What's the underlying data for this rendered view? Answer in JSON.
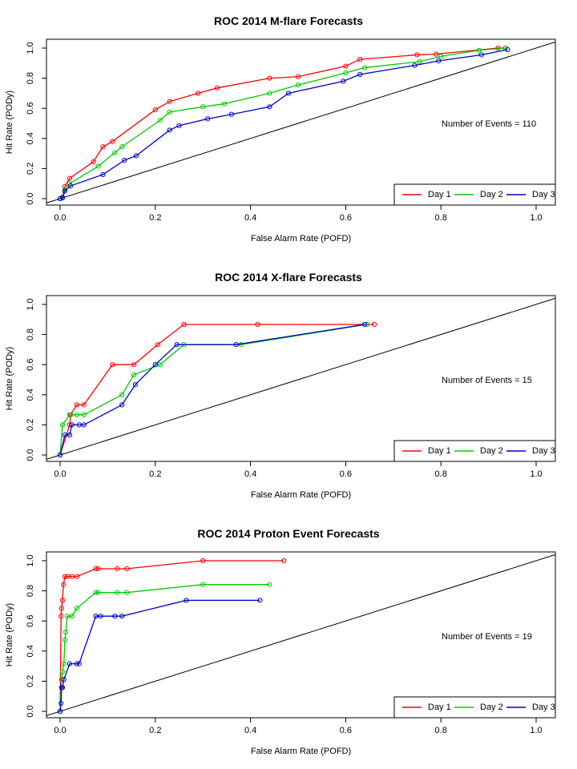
{
  "chart_data": [
    {
      "type": "line",
      "title": "ROC  2014 M-flare Forecasts",
      "xlabel": "False Alarm Rate (POFD)",
      "ylabel": "Hit Rate (PODy)",
      "xlim": [
        0,
        1.0
      ],
      "ylim": [
        0,
        1.0
      ],
      "xticks": [
        "0.0",
        "0.2",
        "0.4",
        "0.6",
        "0.8",
        "1.0"
      ],
      "yticks": [
        "0.0",
        "0.2",
        "0.4",
        "0.6",
        "0.8",
        "1.0"
      ],
      "grid": false,
      "legend": "bottom-right",
      "annotation": "Number of Events =  110",
      "diagonal": true,
      "series": [
        {
          "name": "Day 1",
          "color": "#ff0000",
          "x": [
            0.0,
            0.005,
            0.01,
            0.02,
            0.07,
            0.09,
            0.11,
            0.2,
            0.23,
            0.29,
            0.33,
            0.44,
            0.5,
            0.6,
            0.63,
            0.75,
            0.79,
            0.92,
            0.935
          ],
          "y": [
            0.0,
            0.01,
            0.08,
            0.135,
            0.245,
            0.345,
            0.38,
            0.59,
            0.645,
            0.7,
            0.735,
            0.8,
            0.81,
            0.88,
            0.925,
            0.955,
            0.96,
            1.0,
            1.0
          ]
        },
        {
          "name": "Day 2",
          "color": "#00cc00",
          "x": [
            0.0,
            0.005,
            0.01,
            0.02,
            0.08,
            0.115,
            0.13,
            0.21,
            0.23,
            0.3,
            0.345,
            0.44,
            0.5,
            0.6,
            0.64,
            0.755,
            0.8,
            0.88,
            0.935
          ],
          "y": [
            0.0,
            0.01,
            0.06,
            0.1,
            0.215,
            0.305,
            0.345,
            0.52,
            0.575,
            0.61,
            0.63,
            0.7,
            0.755,
            0.835,
            0.87,
            0.91,
            0.945,
            0.985,
            1.0
          ]
        },
        {
          "name": "Day 3",
          "color": "#0000cc",
          "x": [
            0.0,
            0.005,
            0.01,
            0.022,
            0.09,
            0.135,
            0.16,
            0.23,
            0.25,
            0.31,
            0.36,
            0.44,
            0.48,
            0.595,
            0.63,
            0.745,
            0.795,
            0.885,
            0.94
          ],
          "y": [
            0.0,
            0.005,
            0.05,
            0.085,
            0.16,
            0.255,
            0.285,
            0.455,
            0.485,
            0.53,
            0.56,
            0.61,
            0.7,
            0.78,
            0.825,
            0.885,
            0.915,
            0.955,
            0.99
          ]
        }
      ]
    },
    {
      "type": "line",
      "title": "ROC  2014 X-flare Forecasts",
      "xlabel": "False Alarm Rate (POFD)",
      "ylabel": "Hit Rate (PODy)",
      "xlim": [
        0,
        1.0
      ],
      "ylim": [
        0,
        1.0
      ],
      "xticks": [
        "0.0",
        "0.2",
        "0.4",
        "0.6",
        "0.8",
        "1.0"
      ],
      "yticks": [
        "0.0",
        "0.2",
        "0.4",
        "0.6",
        "0.8",
        "1.0"
      ],
      "grid": false,
      "legend": "bottom-right",
      "annotation": "Number of Events =  15",
      "diagonal": true,
      "series": [
        {
          "name": "Day 1",
          "color": "#ff0000",
          "x": [
            0.0,
            0.02,
            0.022,
            0.035,
            0.05,
            0.11,
            0.155,
            0.205,
            0.26,
            0.415,
            0.66
          ],
          "y": [
            0.0,
            0.2,
            0.267,
            0.333,
            0.333,
            0.6,
            0.6,
            0.733,
            0.867,
            0.867,
            0.867
          ]
        },
        {
          "name": "Day 2",
          "color": "#00cc00",
          "x": [
            0.0,
            0.005,
            0.02,
            0.035,
            0.05,
            0.13,
            0.155,
            0.21,
            0.26,
            0.38,
            0.645
          ],
          "y": [
            0.0,
            0.2,
            0.267,
            0.267,
            0.267,
            0.4,
            0.533,
            0.6,
            0.733,
            0.733,
            0.867
          ]
        },
        {
          "name": "Day 3",
          "color": "#0000cc",
          "x": [
            0.0,
            0.01,
            0.02,
            0.025,
            0.04,
            0.05,
            0.13,
            0.158,
            0.2,
            0.245,
            0.37,
            0.64
          ],
          "y": [
            0.0,
            0.133,
            0.133,
            0.2,
            0.2,
            0.2,
            0.333,
            0.467,
            0.6,
            0.733,
            0.733,
            0.867
          ]
        }
      ]
    },
    {
      "type": "line",
      "title": "ROC  2014 Proton Event Forecasts",
      "xlabel": "False Alarm Rate (POFD)",
      "ylabel": "Hit Rate (PODy)",
      "xlim": [
        0,
        1.0
      ],
      "ylim": [
        0,
        1.0
      ],
      "xticks": [
        "0.0",
        "0.2",
        "0.4",
        "0.6",
        "0.8",
        "1.0"
      ],
      "yticks": [
        "0.0",
        "0.2",
        "0.4",
        "0.6",
        "0.8",
        "1.0"
      ],
      "grid": false,
      "legend": "bottom-right",
      "annotation": "Number of Events =  19",
      "diagonal": true,
      "series": [
        {
          "name": "Day 1",
          "color": "#ff0000",
          "x": [
            0.0,
            0.002,
            0.003,
            0.005,
            0.007,
            0.01,
            0.015,
            0.025,
            0.035,
            0.075,
            0.08,
            0.12,
            0.14,
            0.3,
            0.47
          ],
          "y": [
            0.0,
            0.632,
            0.684,
            0.737,
            0.842,
            0.895,
            0.895,
            0.895,
            0.895,
            0.947,
            0.947,
            0.947,
            0.947,
            1.0,
            1.0
          ]
        },
        {
          "name": "Day 2",
          "color": "#00cc00",
          "x": [
            0.0,
            0.003,
            0.005,
            0.008,
            0.01,
            0.012,
            0.015,
            0.025,
            0.035,
            0.075,
            0.08,
            0.12,
            0.14,
            0.3,
            0.44
          ],
          "y": [
            0.0,
            0.211,
            0.263,
            0.316,
            0.474,
            0.526,
            0.632,
            0.632,
            0.684,
            0.789,
            0.789,
            0.789,
            0.789,
            0.842,
            0.842
          ]
        },
        {
          "name": "Day 3",
          "color": "#0000cc",
          "x": [
            0.0,
            0.002,
            0.003,
            0.005,
            0.008,
            0.02,
            0.035,
            0.04,
            0.075,
            0.085,
            0.115,
            0.13,
            0.265,
            0.42
          ],
          "y": [
            0.0,
            0.053,
            0.158,
            0.158,
            0.211,
            0.316,
            0.316,
            0.316,
            0.632,
            0.632,
            0.632,
            0.632,
            0.737,
            0.737
          ]
        }
      ]
    }
  ]
}
